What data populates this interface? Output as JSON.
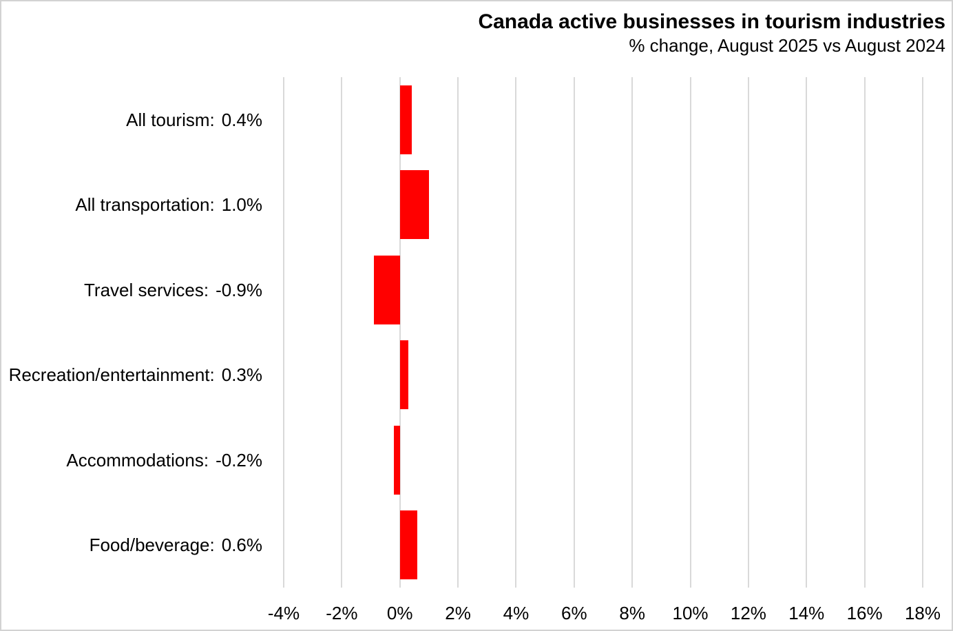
{
  "chart_data": {
    "type": "bar",
    "orientation": "horizontal",
    "title": "Canada active businesses in tourism industries",
    "subtitle": "% change, August 2025 vs August 2024",
    "categories": [
      "All tourism",
      "All transportation",
      "Travel services",
      "Recreation/entertainment",
      "Accommodations",
      "Food/beverage"
    ],
    "values": [
      0.4,
      1.0,
      -0.9,
      0.3,
      -0.2,
      0.6
    ],
    "rows": [
      {
        "label": "All tourism:",
        "value": 0.4,
        "value_label": "0.4%"
      },
      {
        "label": "All transportation:",
        "value": 1.0,
        "value_label": "1.0%"
      },
      {
        "label": "Travel services:",
        "value": -0.9,
        "value_label": "-0.9%"
      },
      {
        "label": "Recreation/entertainment:",
        "value": 0.3,
        "value_label": "0.3%"
      },
      {
        "label": "Accommodations:",
        "value": -0.2,
        "value_label": "-0.2%"
      },
      {
        "label": "Food/beverage:",
        "value": 0.6,
        "value_label": "0.6%"
      }
    ],
    "xlim": [
      -4,
      18
    ],
    "x_ticks": {
      "values": [
        -4,
        -2,
        0,
        2,
        4,
        6,
        8,
        10,
        12,
        14,
        16,
        18
      ],
      "labels": [
        "-4%",
        "-2%",
        "0%",
        "2%",
        "4%",
        "6%",
        "8%",
        "10%",
        "12%",
        "14%",
        "16%",
        "18%"
      ]
    },
    "grid": "vertical",
    "legend": "none",
    "bar_color": "#ff0000",
    "gridline_color": "#d9d9d9",
    "text_color": "#000000",
    "background_color": "#ffffff"
  }
}
